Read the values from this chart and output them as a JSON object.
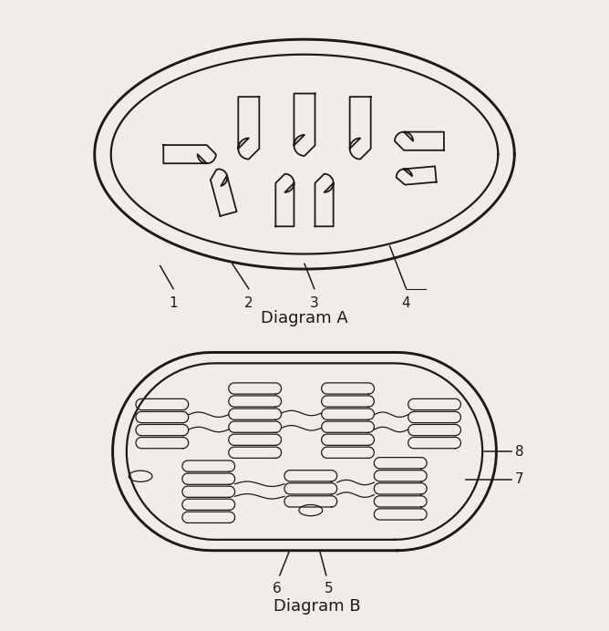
{
  "bg_color": "#f0ede8",
  "line_color": "#1a1a1a",
  "line_width": 1.6,
  "diagram_a_title": "Diagram A",
  "diagram_b_title": "Diagram B",
  "font_size_label": 11,
  "font_size_title": 13
}
